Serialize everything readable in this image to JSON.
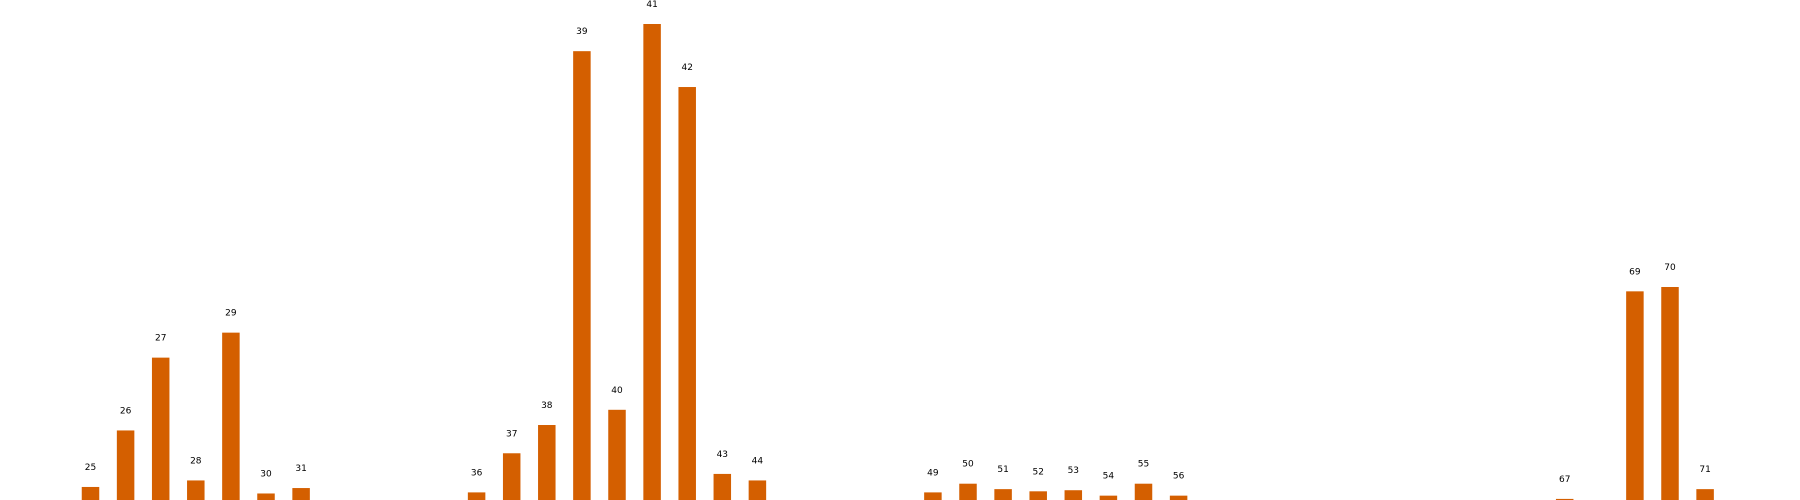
{
  "chart_data": {
    "type": "bar",
    "bar_color": "#d45f00",
    "background": "#ffffff",
    "grid": false,
    "axes_visible": false,
    "ylim": [
      0,
      42
    ],
    "bars": [
      {
        "x": 25,
        "label": "25",
        "value": 1.2
      },
      {
        "x": 26,
        "label": "26",
        "value": 6.4
      },
      {
        "x": 27,
        "label": "27",
        "value": 13.1
      },
      {
        "x": 28,
        "label": "28",
        "value": 1.8
      },
      {
        "x": 29,
        "label": "29",
        "value": 15.4
      },
      {
        "x": 30,
        "label": "30",
        "value": 0.6
      },
      {
        "x": 31,
        "label": "31",
        "value": 1.1
      },
      {
        "x": 36,
        "label": "36",
        "value": 0.7
      },
      {
        "x": 37,
        "label": "37",
        "value": 4.3
      },
      {
        "x": 38,
        "label": "38",
        "value": 6.9
      },
      {
        "x": 39,
        "label": "39",
        "value": 41.3
      },
      {
        "x": 40,
        "label": "40",
        "value": 8.3
      },
      {
        "x": 41,
        "label": "41",
        "value": 43.8
      },
      {
        "x": 42,
        "label": "42",
        "value": 38.0
      },
      {
        "x": 43,
        "label": "43",
        "value": 2.4
      },
      {
        "x": 44,
        "label": "44",
        "value": 1.8
      },
      {
        "x": 49,
        "label": "49",
        "value": 0.7
      },
      {
        "x": 50,
        "label": "50",
        "value": 1.5
      },
      {
        "x": 51,
        "label": "51",
        "value": 1.0
      },
      {
        "x": 52,
        "label": "52",
        "value": 0.8
      },
      {
        "x": 53,
        "label": "53",
        "value": 0.9
      },
      {
        "x": 54,
        "label": "54",
        "value": 0.4
      },
      {
        "x": 55,
        "label": "55",
        "value": 1.5
      },
      {
        "x": 56,
        "label": "56",
        "value": 0.4
      },
      {
        "x": 67,
        "label": "67",
        "value": 0.1
      },
      {
        "x": 69,
        "label": "69",
        "value": 19.2
      },
      {
        "x": 70,
        "label": "70",
        "value": 19.6
      },
      {
        "x": 71,
        "label": "71",
        "value": 1.0
      }
    ]
  }
}
